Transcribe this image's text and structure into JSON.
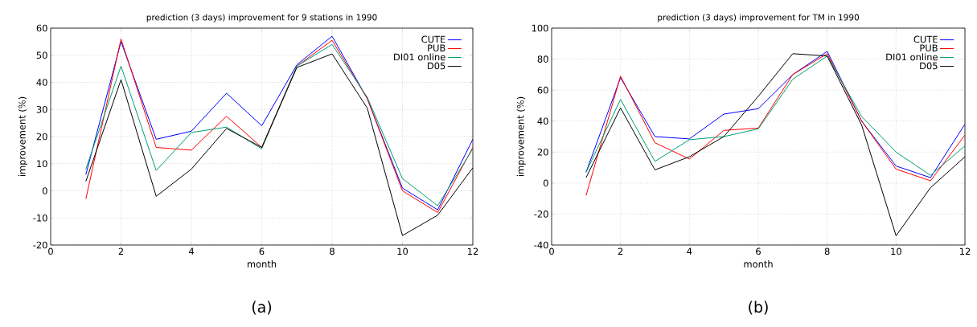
{
  "chart_data": [
    {
      "type": "line",
      "title": "prediction (3 days) improvement for 9 stations in 1990",
      "xlabel": "month",
      "ylabel": "improvement (%)",
      "annotations": [
        "(a)"
      ],
      "x": [
        1,
        2,
        3,
        4,
        5,
        6,
        7,
        8,
        9,
        10,
        11,
        12
      ],
      "series": [
        {
          "name": "CUTE",
          "color": "#0000ff",
          "values": [
            6,
            55,
            19,
            22,
            36,
            24,
            46.5,
            57,
            34,
            1,
            -7,
            19
          ]
        },
        {
          "name": "PUB",
          "color": "#ff0000",
          "values": [
            -3,
            56,
            16,
            15,
            27.5,
            16,
            46,
            55.5,
            34,
            0,
            -8,
            16
          ]
        },
        {
          "name": "DI01 online",
          "color": "#009e73",
          "values": [
            8,
            46,
            7.5,
            21.5,
            23.5,
            15.5,
            46,
            54,
            34.5,
            4.5,
            -5.5,
            15.5
          ]
        },
        {
          "name": "D05",
          "color": "#000000",
          "values": [
            3.5,
            41,
            -2,
            8,
            23,
            16,
            45.5,
            50.5,
            30.5,
            -16.5,
            -9,
            8.5
          ]
        }
      ],
      "xlim": [
        0,
        12
      ],
      "xticks": [
        0,
        2,
        4,
        6,
        8,
        10,
        12
      ],
      "ylim": [
        -20,
        60
      ],
      "yticks": [
        -20,
        -10,
        0,
        10,
        20,
        30,
        40,
        50,
        60
      ],
      "grid": true,
      "legend": "top right",
      "marker": "none",
      "line_style": "solid"
    },
    {
      "type": "line",
      "title": "prediction (3 days) improvement for TM in 1990",
      "xlabel": "month",
      "ylabel": "improvement (%)",
      "annotations": [
        "(b)"
      ],
      "x": [
        1,
        2,
        3,
        4,
        5,
        6,
        7,
        8,
        9,
        10,
        11,
        12
      ],
      "series": [
        {
          "name": "CUTE",
          "color": "#0000ff",
          "values": [
            7,
            68,
            30,
            28.5,
            44.5,
            48,
            70,
            85,
            40,
            11,
            3.5,
            38
          ]
        },
        {
          "name": "PUB",
          "color": "#ff0000",
          "values": [
            -8,
            69,
            26,
            15.5,
            34,
            35.5,
            70,
            83.5,
            40,
            9,
            1.5,
            31
          ]
        },
        {
          "name": "DI01 online",
          "color": "#009e73",
          "values": [
            7,
            54,
            14,
            28,
            30,
            35,
            67,
            82,
            43,
            20,
            5,
            24
          ]
        },
        {
          "name": "D05",
          "color": "#000000",
          "values": [
            3.5,
            48.5,
            8.5,
            17,
            30,
            56,
            83.5,
            82,
            37.5,
            -34,
            -3,
            17
          ]
        }
      ],
      "xlim": [
        0,
        12
      ],
      "xticks": [
        0,
        2,
        4,
        6,
        8,
        10,
        12
      ],
      "ylim": [
        -40,
        100
      ],
      "yticks": [
        -40,
        -20,
        0,
        20,
        40,
        60,
        80,
        100
      ],
      "grid": true,
      "legend": "top right",
      "marker": "none",
      "line_style": "solid"
    }
  ]
}
